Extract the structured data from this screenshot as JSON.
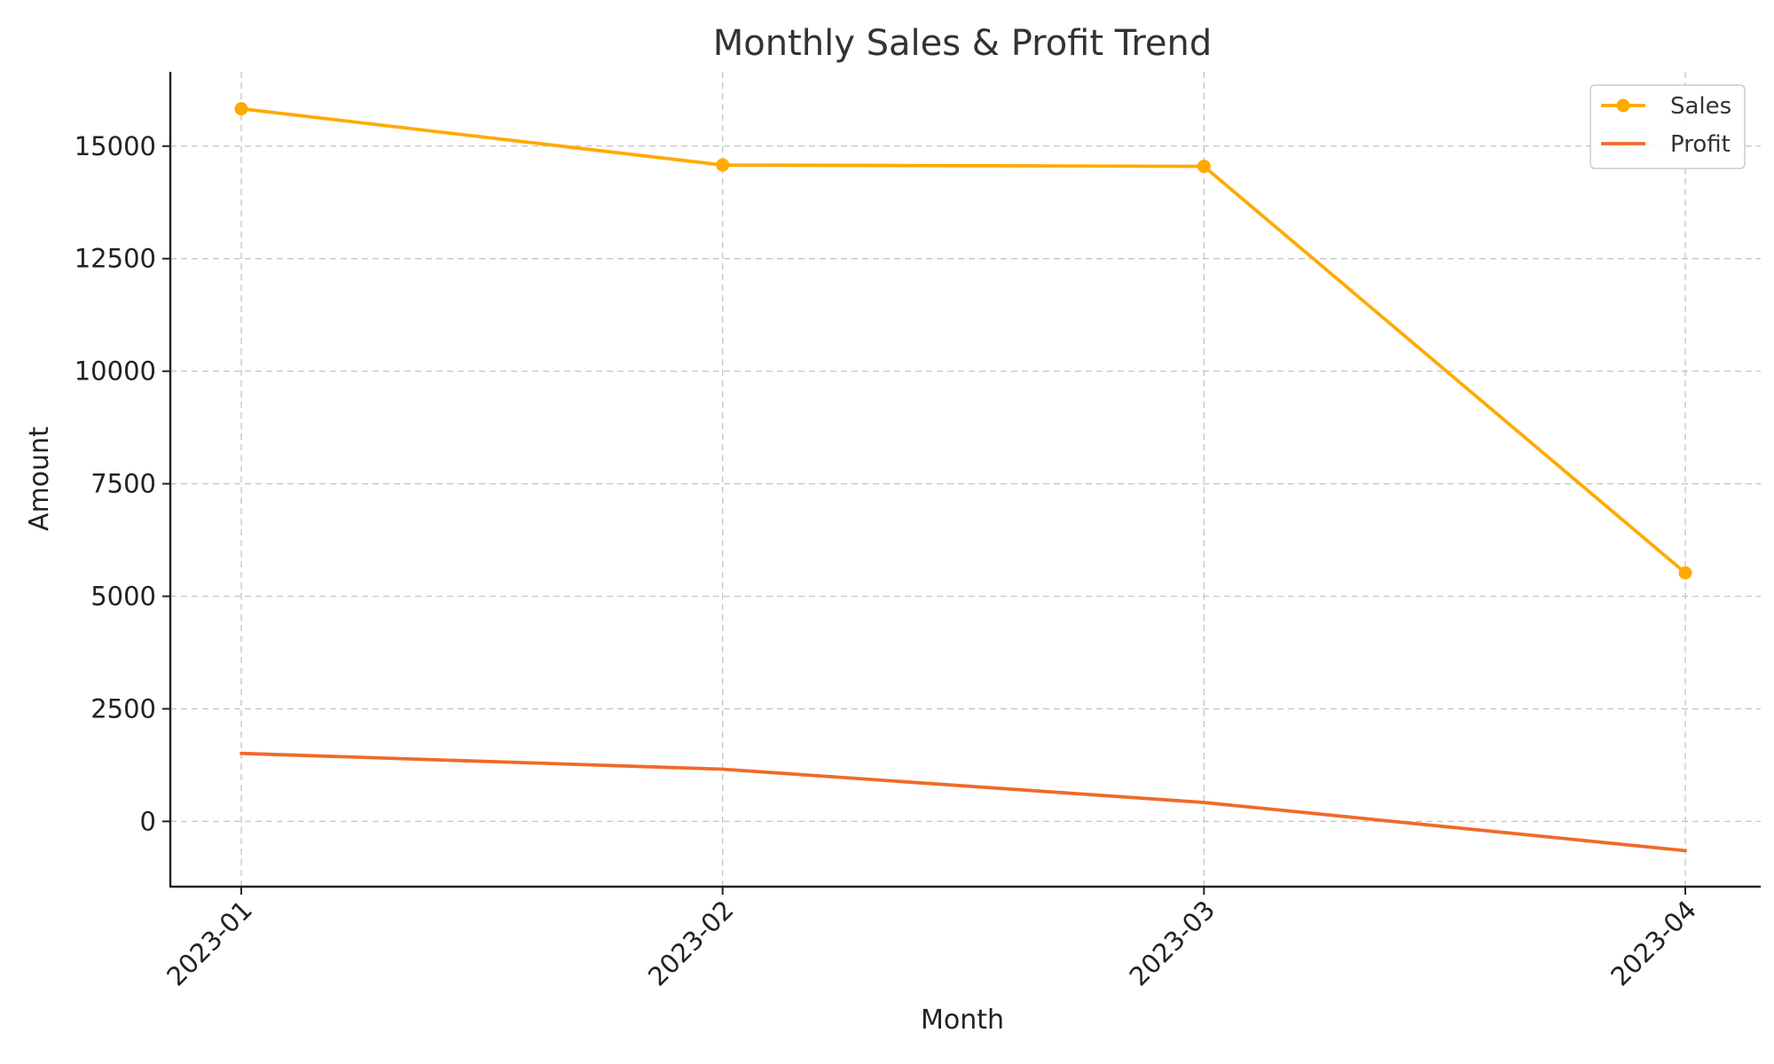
{
  "chart_data": {
    "type": "line",
    "title": "Monthly Sales & Profit Trend",
    "xlabel": "Month",
    "ylabel": "Amount",
    "categories": [
      "2023-01",
      "2023-02",
      "2023-03",
      "2023-04"
    ],
    "ylim": [
      -1450,
      16650
    ],
    "yticks": [
      0,
      2500,
      5000,
      7500,
      10000,
      12500,
      15000
    ],
    "grid": true,
    "legend_position": "top-right",
    "series": [
      {
        "name": "Sales",
        "values": [
          15830,
          14580,
          14550,
          5520
        ],
        "color": "#FFAA00",
        "markers": true
      },
      {
        "name": "Profit",
        "values": [
          1510,
          1160,
          420,
          -650
        ],
        "color": "#F06A28",
        "markers": false
      }
    ]
  }
}
